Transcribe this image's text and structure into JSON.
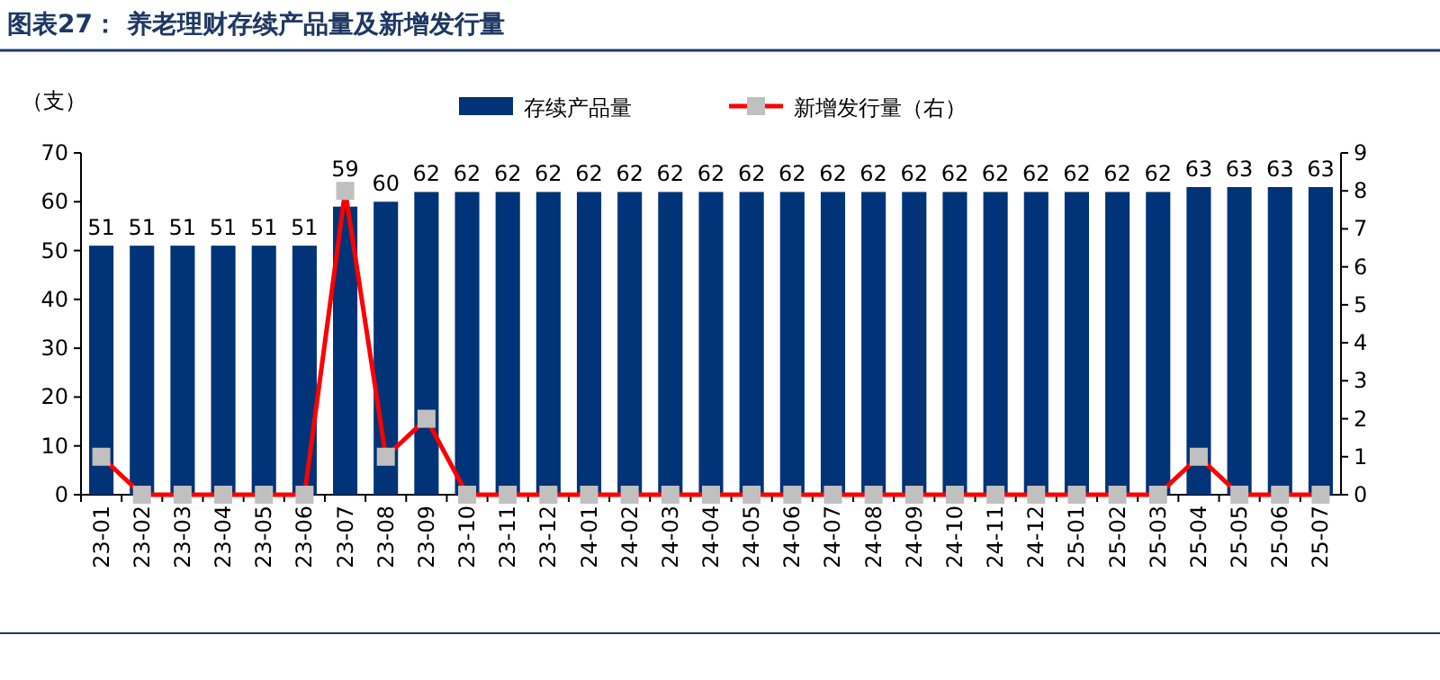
{
  "chart_data": {
    "type": "bar",
    "title": "图表27： 养老理财存续产品量及新增发行量",
    "ylabel": "（支）",
    "categories": [
      "23-01",
      "23-02",
      "23-03",
      "23-04",
      "23-05",
      "23-06",
      "23-07",
      "23-08",
      "23-09",
      "23-10",
      "23-11",
      "23-12",
      "24-01",
      "24-02",
      "24-03",
      "24-04",
      "24-05",
      "24-06",
      "24-07",
      "24-08",
      "24-09",
      "24-10",
      "24-11",
      "24-12",
      "25-01",
      "25-02",
      "25-03",
      "25-04",
      "25-05",
      "25-06",
      "25-07"
    ],
    "series": [
      {
        "name": "存续产品量",
        "color": "#003377",
        "values": [
          51,
          51,
          51,
          51,
          51,
          51,
          59,
          60,
          62,
          62,
          62,
          62,
          62,
          62,
          62,
          62,
          62,
          62,
          62,
          62,
          62,
          62,
          62,
          62,
          62,
          62,
          62,
          63,
          63,
          63,
          63
        ],
        "value_labels": [
          "51",
          "51",
          "51",
          "51",
          "51",
          "51",
          "59",
          "60",
          "62",
          "62",
          "62",
          "62",
          "62",
          "62",
          "62",
          "62",
          "62",
          "62",
          "62",
          "62",
          "62",
          "62",
          "62",
          "62",
          "62",
          "62",
          "62",
          "63",
          "63",
          "63",
          "63"
        ]
      },
      {
        "name": "新增发行量（右）",
        "type": "line",
        "axis": "y2",
        "color": "#ff0000",
        "marker": "square",
        "line_style": "solid",
        "values": [
          1,
          0,
          0,
          0,
          0,
          0,
          8,
          1,
          2,
          0,
          0,
          0,
          0,
          0,
          0,
          0,
          0,
          0,
          0,
          0,
          0,
          0,
          0,
          0,
          0,
          0,
          0,
          1,
          0,
          0,
          0
        ]
      }
    ],
    "ylim": [
      0,
      70
    ],
    "yticks": [
      0,
      10,
      20,
      30,
      40,
      50,
      60,
      70
    ],
    "y2lim": [
      0,
      9
    ],
    "y2ticks": [
      0,
      1,
      2,
      3,
      4,
      5,
      6,
      7,
      8,
      9
    ],
    "legend": "top",
    "grid": false
  }
}
